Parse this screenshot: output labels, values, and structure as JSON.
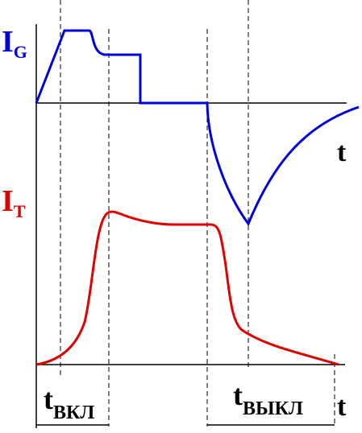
{
  "labels": {
    "gate_current": {
      "main": "I",
      "sub": "G"
    },
    "thyristor_current": {
      "main": "I",
      "sub": "T"
    },
    "time_upper": "t",
    "time_lower": "t",
    "turn_on": {
      "main": "t",
      "sub": "ВКЛ"
    },
    "turn_off": {
      "main": "t",
      "sub": "ВЫКЛ"
    }
  }
}
